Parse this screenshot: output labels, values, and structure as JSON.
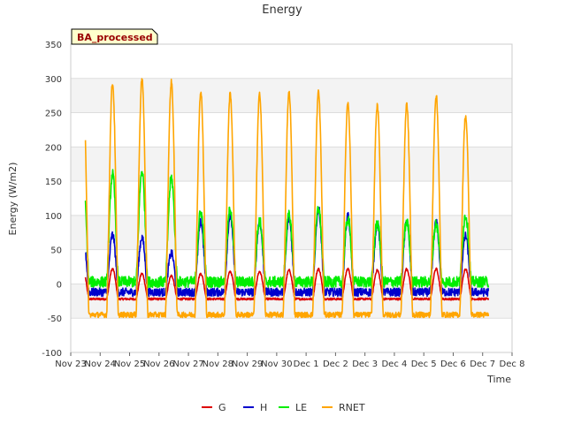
{
  "chart_data": {
    "type": "line",
    "title": "Energy",
    "badge": "BA_processed",
    "xlabel": "Time",
    "ylabel": "Energy (W/m2)",
    "ylim": [
      -100,
      350
    ],
    "yticks": [
      -100,
      -50,
      0,
      50,
      100,
      150,
      200,
      250,
      300,
      350
    ],
    "xlim": [
      0,
      15
    ],
    "xticks": [
      {
        "x": 0,
        "label": "Nov 23"
      },
      {
        "x": 1,
        "label": "Nov 24"
      },
      {
        "x": 2,
        "label": "Nov 25"
      },
      {
        "x": 3,
        "label": "Nov 26"
      },
      {
        "x": 4,
        "label": "Nov 27"
      },
      {
        "x": 5,
        "label": "Nov 28"
      },
      {
        "x": 6,
        "label": "Nov 29"
      },
      {
        "x": 7,
        "label": "Nov 30"
      },
      {
        "x": 8,
        "label": "Dec 1"
      },
      {
        "x": 9,
        "label": "Dec 2"
      },
      {
        "x": 10,
        "label": "Dec 3"
      },
      {
        "x": 11,
        "label": "Dec 4"
      },
      {
        "x": 12,
        "label": "Dec 5"
      },
      {
        "x": 13,
        "label": "Dec 6"
      },
      {
        "x": 14,
        "label": "Dec 7"
      },
      {
        "x": 15,
        "label": "Dec 8"
      }
    ],
    "x_start": 0.5,
    "x_end": 14.2,
    "grid": true,
    "legend_position": "bottom",
    "series": [
      {
        "name": "G",
        "color": "#dd0000",
        "peaks": [
          20,
          22,
          15,
          12,
          15,
          18,
          18,
          20,
          22,
          22,
          20,
          22,
          22,
          22
        ],
        "night": -22
      },
      {
        "name": "H",
        "color": "#0000cc",
        "peaks": [
          72,
          72,
          68,
          45,
          90,
          100,
          92,
          95,
          110,
          100,
          88,
          92,
          90,
          70
        ],
        "night": -12
      },
      {
        "name": "LE",
        "color": "#00ee00",
        "peaks": [
          155,
          160,
          165,
          155,
          105,
          110,
          92,
          100,
          110,
          95,
          90,
          92,
          88,
          100
        ],
        "night": 3
      },
      {
        "name": "RNET",
        "color": "#ffa500",
        "peaks": [
          297,
          293,
          300,
          295,
          280,
          278,
          277,
          280,
          280,
          265,
          260,
          262,
          275,
          245
        ],
        "night": -45
      }
    ]
  }
}
